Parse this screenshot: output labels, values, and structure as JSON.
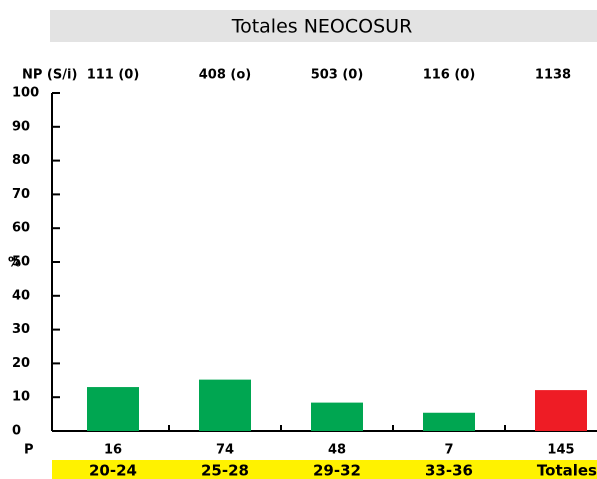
{
  "chart_data": {
    "type": "bar",
    "title": "Totales NEOCOSUR",
    "y_label": "%",
    "np_label": "NP (S/i)",
    "np": [
      "111 (0)",
      "408 (o)",
      "503 (0)",
      "116 (0)",
      "1138"
    ],
    "p_label": "P",
    "p": [
      16,
      74,
      48,
      7,
      145
    ],
    "categories": [
      "20-24",
      "25-28",
      "29-32",
      "33-36",
      "Totales"
    ],
    "values": [
      13,
      15.2,
      8.4,
      5.4,
      12.1
    ],
    "colors": [
      "#00a651",
      "#00a651",
      "#00a651",
      "#00a651",
      "#ee1c25"
    ],
    "ylim": [
      0,
      100
    ],
    "yticks": [
      0,
      10,
      20,
      30,
      40,
      50,
      60,
      70,
      80,
      90,
      100
    ]
  }
}
